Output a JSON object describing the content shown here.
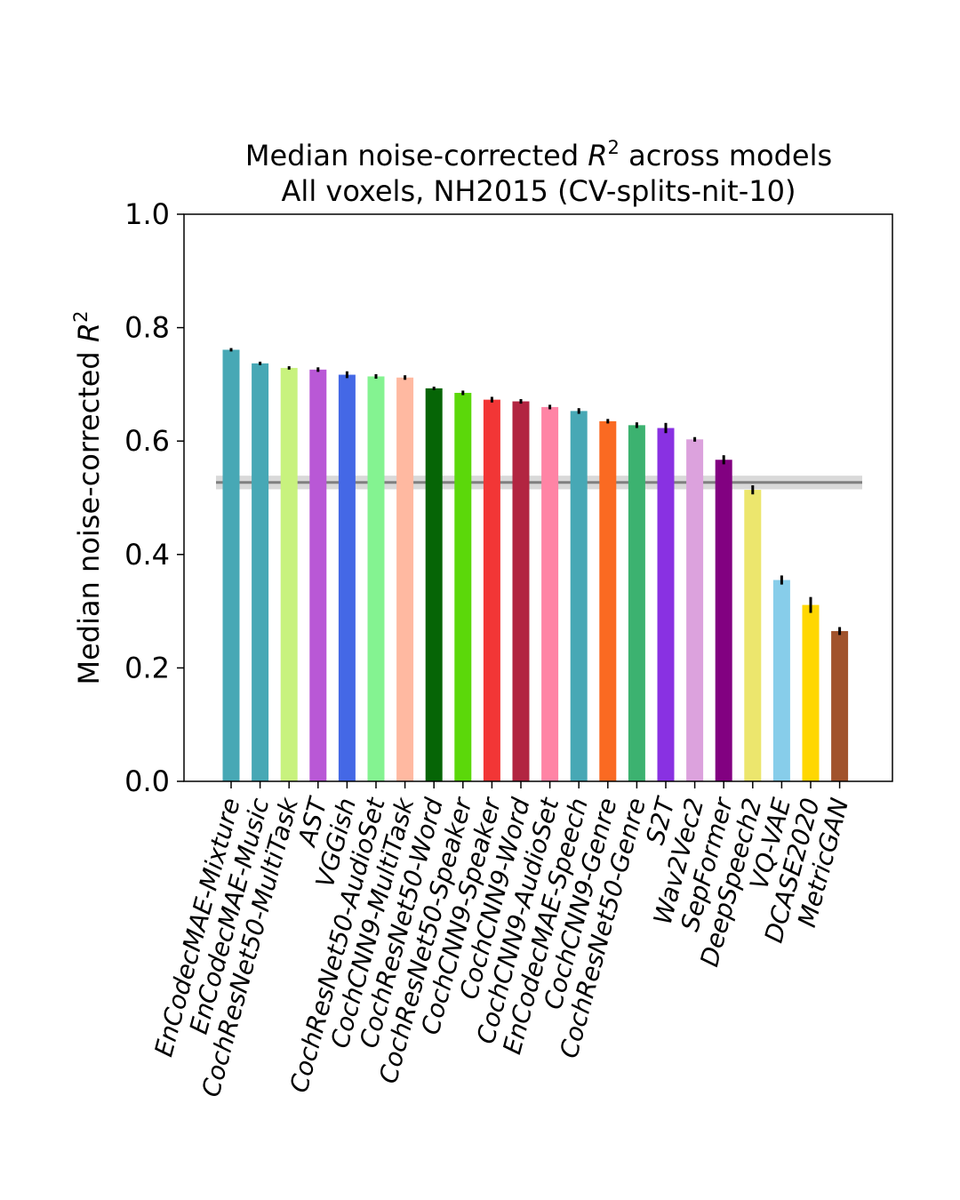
{
  "chart_data": {
    "type": "bar",
    "title_line1_prefix": "Median noise-corrected ",
    "title_line1_var": "R",
    "title_line1_sup": "2",
    "title_line1_suffix": " across models",
    "title_line2": "All voxels, NH2015  (CV-splits-nit-10)",
    "ylabel_prefix": "Median noise-corrected ",
    "ylabel_var": "R",
    "ylabel_sup": "2",
    "xlabel": "",
    "ylim": [
      0.0,
      1.0
    ],
    "yticks": [
      "0.0",
      "0.2",
      "0.4",
      "0.6",
      "0.8",
      "1.0"
    ],
    "grid": false,
    "reference_line": {
      "value": 0.527,
      "band": [
        0.515,
        0.539
      ],
      "color": "#808080"
    },
    "categories": [
      "EnCodecMAE-Mixture",
      "EnCodecMAE-Music",
      "CochResNet50-MultiTask",
      "AST",
      "VGGish",
      "CochResNet50-AudioSet",
      "CochCNN9-MultiTask",
      "CochResNet50-Word",
      "CochResNet50-Speaker",
      "CochCNN9-Speaker",
      "CochCNN9-Word",
      "CochCNN9-AudioSet",
      "EnCodecMAE-Speech",
      "CochCNN9-Genre",
      "CochResNet50-Genre",
      "S2T",
      "Wav2Vec2",
      "SepFormer",
      "DeepSpeech2",
      "VQ-VAE",
      "DCASE2020",
      "MetricGAN"
    ],
    "values": [
      0.761,
      0.737,
      0.729,
      0.726,
      0.717,
      0.714,
      0.712,
      0.693,
      0.685,
      0.673,
      0.67,
      0.66,
      0.653,
      0.635,
      0.628,
      0.623,
      0.603,
      0.567,
      0.514,
      0.355,
      0.311,
      0.265
    ],
    "errors": [
      0.003,
      0.003,
      0.003,
      0.004,
      0.006,
      0.004,
      0.004,
      0.003,
      0.004,
      0.005,
      0.004,
      0.004,
      0.005,
      0.004,
      0.005,
      0.009,
      0.004,
      0.008,
      0.008,
      0.008,
      0.014,
      0.007
    ],
    "colors": [
      "#47a8b5",
      "#47a8b5",
      "#c8f27e",
      "#b958d6",
      "#4468e6",
      "#84f391",
      "#ffb9a1",
      "#066506",
      "#5bd80a",
      "#f23636",
      "#b22541",
      "#ff84a5",
      "#47a8b5",
      "#fa6a22",
      "#3cb270",
      "#8931e2",
      "#dca2dd",
      "#820181",
      "#ece66d",
      "#87cdea",
      "#ffd701",
      "#a1532c"
    ]
  }
}
